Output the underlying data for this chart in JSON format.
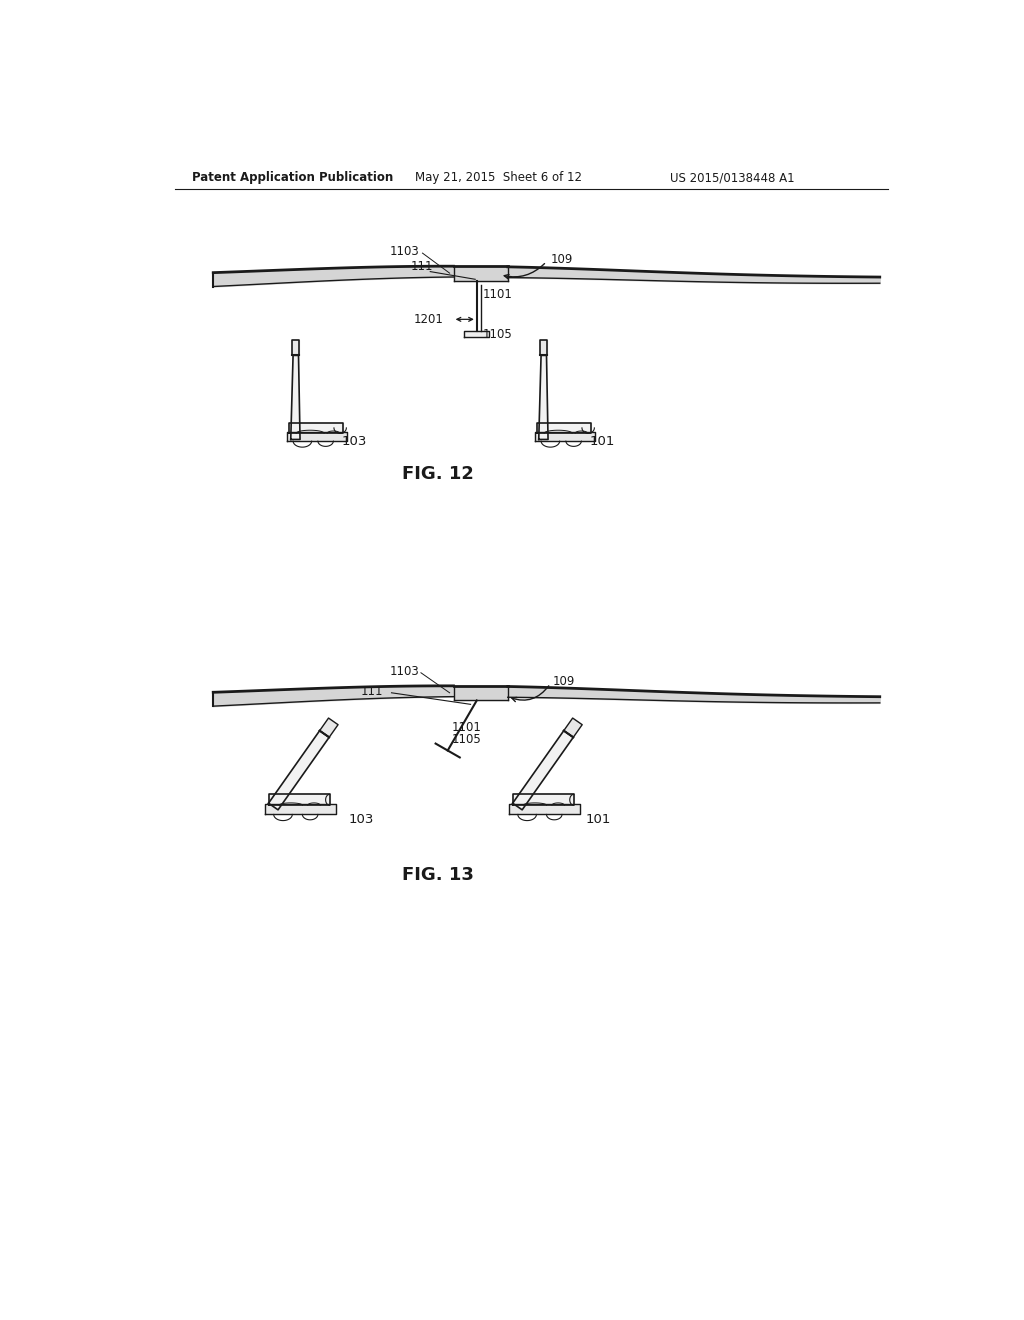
{
  "bg_color": "#ffffff",
  "header_left": "Patent Application Publication",
  "header_mid": "May 21, 2015  Sheet 6 of 12",
  "header_right": "US 2015/0138448 A1",
  "fig12_label": "FIG. 12",
  "fig13_label": "FIG. 13",
  "line_color": "#1a1a1a",
  "text_color": "#1a1a1a",
  "label_fontsize": 8.5,
  "fig_label_fontsize": 13
}
